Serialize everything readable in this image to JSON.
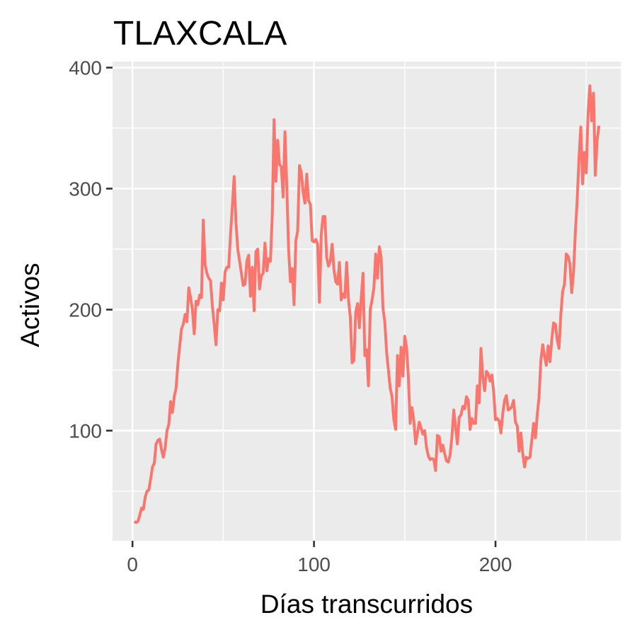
{
  "chart_data": {
    "type": "line",
    "title": "TLAXCALA",
    "xlabel": "Días transcurridos",
    "ylabel": "Activos",
    "xlim": [
      -11,
      269
    ],
    "ylim": [
      9,
      405
    ],
    "x_ticks": [
      0,
      100,
      200
    ],
    "y_ticks": [
      100,
      200,
      300,
      400
    ],
    "x_tick_labels": [
      "0",
      "100",
      "200"
    ],
    "y_tick_labels": [
      "100",
      "200",
      "300",
      "400"
    ],
    "grid": true,
    "legend": "none",
    "colors": {
      "panel_background": "#ebebeb",
      "grid": "#ffffff",
      "series": "#f8766d",
      "tick_mark": "#333333"
    },
    "series": [
      {
        "x": [
          1,
          2,
          3,
          4,
          5,
          6,
          7,
          8,
          9,
          10,
          11,
          12,
          13,
          14,
          15,
          16,
          17,
          18,
          19,
          20,
          21,
          22,
          23,
          24,
          25,
          26,
          27,
          28,
          29,
          30,
          31,
          32,
          33,
          34,
          35,
          36,
          37,
          38,
          39,
          40,
          41,
          42,
          43,
          44,
          45,
          46,
          47,
          48,
          49,
          50,
          51,
          52,
          53,
          54,
          55,
          56,
          57,
          58,
          59,
          60,
          61,
          62,
          63,
          64,
          65,
          66,
          67,
          68,
          69,
          70,
          71,
          72,
          73,
          74,
          75,
          76,
          77,
          78,
          79,
          80,
          81,
          82,
          83,
          84,
          85,
          86,
          87,
          88,
          89,
          90,
          91,
          92,
          93,
          94,
          95,
          96,
          97,
          98,
          99,
          100,
          101,
          102,
          103,
          104,
          105,
          106,
          107,
          108,
          109,
          110,
          111,
          112,
          113,
          114,
          115,
          116,
          117,
          118,
          119,
          120,
          121,
          122,
          123,
          124,
          125,
          126,
          127,
          128,
          129,
          130,
          131,
          132,
          133,
          134,
          135,
          136,
          137,
          138,
          139,
          140,
          141,
          142,
          143,
          144,
          145,
          146,
          147,
          148,
          149,
          150,
          151,
          152,
          153,
          154,
          155,
          156,
          157,
          158,
          159,
          160,
          161,
          162,
          163,
          164,
          165,
          166,
          167,
          168,
          169,
          170,
          171,
          172,
          173,
          174,
          175,
          176,
          177,
          178,
          179,
          180,
          181,
          182,
          183,
          184,
          185,
          186,
          187,
          188,
          189,
          190,
          191,
          192,
          193,
          194,
          195,
          196,
          197,
          198,
          199,
          200,
          201,
          202,
          203,
          204,
          205,
          206,
          207,
          208,
          209,
          210,
          211,
          212,
          213,
          214,
          215,
          216,
          217,
          218,
          219,
          220,
          221,
          222,
          223,
          224,
          225,
          226,
          227,
          228,
          229,
          230,
          231,
          232,
          233,
          234,
          235,
          236,
          237,
          238,
          239,
          240,
          241,
          242,
          243,
          244,
          245,
          246,
          247,
          248,
          249,
          250,
          251,
          252,
          253,
          254,
          255,
          256,
          257
        ],
        "values": [
          25,
          24,
          25,
          30,
          36,
          35,
          45,
          50,
          51,
          60,
          70,
          73,
          89,
          92,
          93,
          84,
          78,
          86,
          100,
          105,
          124,
          115,
          128,
          135,
          155,
          170,
          184,
          188,
          196,
          190,
          218,
          210,
          200,
          180,
          207,
          204,
          212,
          210,
          274,
          237,
          230,
          226,
          224,
          203,
          188,
          171,
          200,
          199,
          222,
          208,
          231,
          235,
          235,
          262,
          285,
          310,
          272,
          250,
          240,
          230,
          220,
          221,
          240,
          245,
          211,
          235,
          199,
          248,
          250,
          217,
          228,
          230,
          255,
          232,
          242,
          240,
          278,
          357,
          306,
          340,
          320,
          318,
          293,
          347,
          302,
          250,
          223,
          234,
          204,
          257,
          265,
          319,
          313,
          297,
          288,
          312,
          290,
          287,
          257,
          256,
          258,
          254,
          206,
          262,
          277,
          277,
          243,
          236,
          240,
          254,
          233,
          223,
          221,
          239,
          208,
          213,
          210,
          239,
          208,
          194,
          156,
          158,
          198,
          205,
          185,
          209,
          230,
          162,
          167,
          137,
          200,
          208,
          218,
          246,
          226,
          252,
          243,
          201,
          190,
          165,
          150,
          135,
          128,
          109,
          101,
          162,
          137,
          169,
          145,
          178,
          169,
          144,
          106,
          119,
          108,
          89,
          98,
          107,
          102,
          97,
          100,
          86,
          79,
          76,
          77,
          76,
          67,
          96,
          95,
          83,
          88,
          81,
          75,
          74,
          80,
          95,
          117,
          103,
          89,
          111,
          113,
          120,
          118,
          128,
          125,
          101,
          110,
          106,
          106,
          137,
          123,
          168,
          144,
          133,
          149,
          147,
          141,
          146,
          132,
          109,
          110,
          108,
          98,
          114,
          125,
          129,
          117,
          118,
          120,
          125,
          107,
          104,
          83,
          98,
          81,
          70,
          78,
          77,
          78,
          92,
          106,
          94,
          113,
          128,
          158,
          171,
          162,
          154,
          170,
          157,
          175,
          189,
          188,
          175,
          168,
          196,
          215,
          221,
          246,
          244,
          238,
          214,
          231,
          264,
          290,
          325,
          351,
          304,
          330,
          313,
          362,
          385,
          356,
          379,
          311,
          340,
          352
        ]
      }
    ]
  }
}
